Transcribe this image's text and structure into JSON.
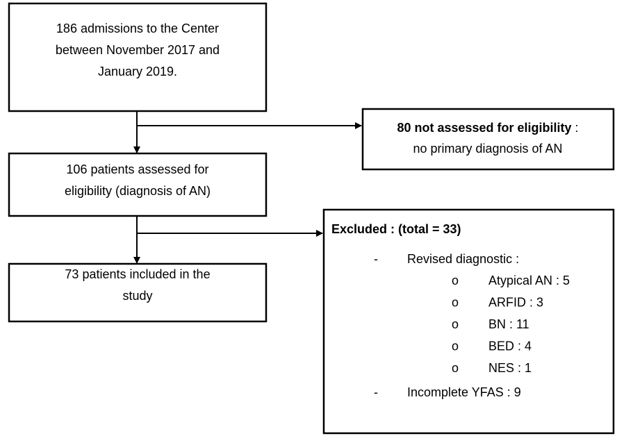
{
  "boxes": {
    "admissions": {
      "lines": [
        "186 admissions to the Center",
        "between November 2017 and",
        "January 2019."
      ]
    },
    "not_assessed": {
      "bold": "80 not assessed for eligibility",
      "suffix": " :",
      "lines": [
        "no primary diagnosis of AN"
      ]
    },
    "assessed": {
      "lines": [
        "106 patients assessed for",
        "eligibility (diagnosis of AN)"
      ]
    },
    "included": {
      "lines": [
        "73 patients included in the",
        "study"
      ]
    },
    "excluded": {
      "title": "Excluded : (total = 33)",
      "bullet": "-",
      "sub_bullet": "o",
      "revised": "Revised diagnostic :",
      "items": [
        "Atypical AN : 5",
        "ARFID : 3",
        "BN : 11",
        "BED : 4",
        "NES : 1"
      ],
      "incomplete": "Incomplete YFAS : 9"
    }
  }
}
